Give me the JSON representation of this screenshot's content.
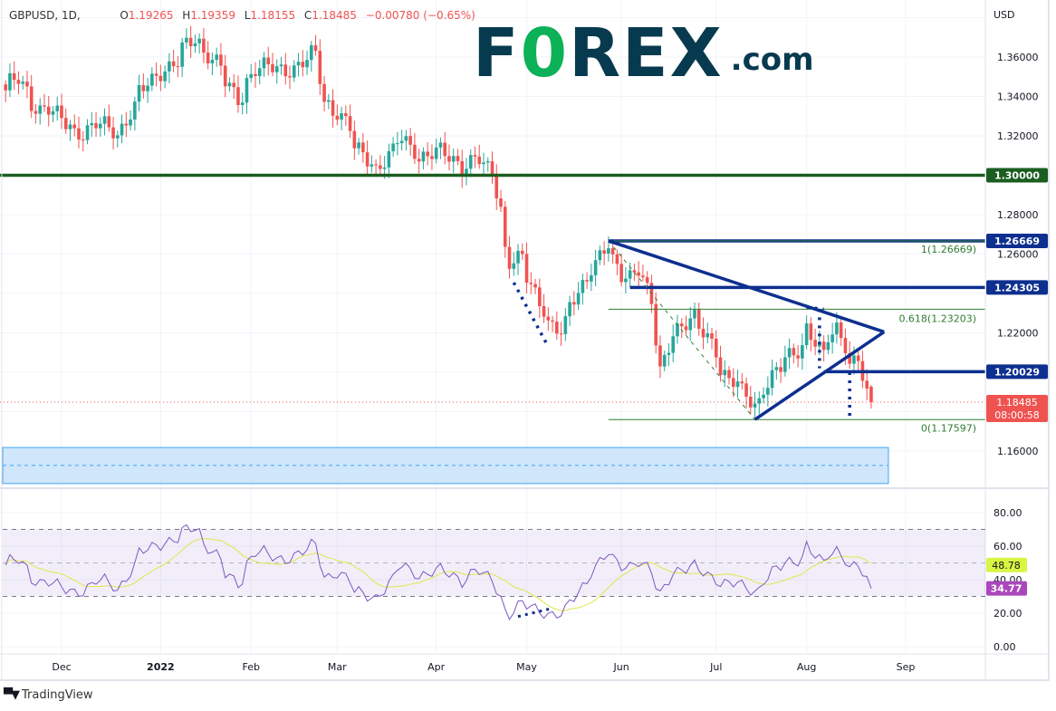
{
  "header": {
    "symbol": "GBPUSD, 1D,",
    "open_label": "O",
    "open": "1.19265",
    "high_label": "H",
    "high": "1.19359",
    "low_label": "L",
    "low": "1.18155",
    "close_label": "C",
    "close": "1.18485",
    "change": "−0.00780 (−0.65%)"
  },
  "logo": {
    "text_pre": "F",
    "text_o": "0",
    "text_post": "REX",
    "suffix": ".com"
  },
  "footer": {
    "brand": "TradingView",
    "brand_icon": "tradingview-logo-icon"
  },
  "colors": {
    "up": "#26a69a",
    "down": "#ef5350",
    "drawing_blue": "#0d2f8f",
    "level_green": "#1b5e20",
    "fib_green": "#2e7d32",
    "rsi": "#7e57c2",
    "rsi_ma": "#e0e64a",
    "zone": "#cfe6fb",
    "zone_border": "#42a5f5"
  },
  "chart_data": [
    {
      "type": "candlestick",
      "title": "GBPUSD, 1D",
      "currency_label": "USD",
      "y_ticks": [
        "1.36000",
        "1.34000",
        "1.32000",
        "1.28000",
        "1.26000",
        "1.22000",
        "1.16000"
      ],
      "ylim": [
        1.1407,
        1.3889
      ],
      "x_ticks": [
        "Dec",
        "2022",
        "Feb",
        "Mar",
        "Apr",
        "May",
        "Jun",
        "Jul",
        "Aug",
        "Sep"
      ],
      "x_tick_dates": [
        "2021-12-01",
        "2022-01-01",
        "2022-02-01",
        "2022-03-01",
        "2022-04-01",
        "2022-05-01",
        "2022-06-01",
        "2022-07-01",
        "2022-08-01",
        "2022-09-01"
      ],
      "grid": true,
      "approx_closes": [
        [
          "2021-11-12",
          1.341
        ],
        [
          "2021-11-17",
          1.349
        ],
        [
          "2021-11-24",
          1.333
        ],
        [
          "2021-11-30",
          1.33
        ],
        [
          "2021-12-08",
          1.321
        ],
        [
          "2021-12-15",
          1.326
        ],
        [
          "2021-12-20",
          1.322
        ],
        [
          "2021-12-27",
          1.341
        ],
        [
          "2021-12-31",
          1.352
        ],
        [
          "2022-01-07",
          1.356
        ],
        [
          "2022-01-13",
          1.37
        ],
        [
          "2022-01-18",
          1.362
        ],
        [
          "2022-01-24",
          1.346
        ],
        [
          "2022-01-27",
          1.339
        ],
        [
          "2022-02-02",
          1.354
        ],
        [
          "2022-02-09",
          1.354
        ],
        [
          "2022-02-15",
          1.355
        ],
        [
          "2022-02-22",
          1.361
        ],
        [
          "2022-02-24",
          1.338
        ],
        [
          "2022-03-01",
          1.333
        ],
        [
          "2022-03-07",
          1.313
        ],
        [
          "2022-03-14",
          1.304
        ],
        [
          "2022-03-22",
          1.318
        ],
        [
          "2022-03-28",
          1.31
        ],
        [
          "2022-04-04",
          1.311
        ],
        [
          "2022-04-11",
          1.305
        ],
        [
          "2022-04-14",
          1.308
        ],
        [
          "2022-04-20",
          1.301
        ],
        [
          "2022-04-22",
          1.284
        ],
        [
          "2022-04-26",
          1.257
        ],
        [
          "2022-04-29",
          1.257
        ],
        [
          "2022-05-05",
          1.236
        ],
        [
          "2022-05-12",
          1.22
        ],
        [
          "2022-05-16",
          1.232
        ],
        [
          "2022-05-20",
          1.249
        ],
        [
          "2022-05-27",
          1.263
        ],
        [
          "2022-06-01",
          1.249
        ],
        [
          "2022-06-07",
          1.254
        ],
        [
          "2022-06-13",
          1.214
        ],
        [
          "2022-06-14",
          1.199
        ],
        [
          "2022-06-17",
          1.222
        ],
        [
          "2022-06-24",
          1.226
        ],
        [
          "2022-06-30",
          1.216
        ],
        [
          "2022-07-06",
          1.196
        ],
        [
          "2022-07-14",
          1.184
        ],
        [
          "2022-07-20",
          1.198
        ],
        [
          "2022-07-27",
          1.209
        ],
        [
          "2022-08-01",
          1.224
        ],
        [
          "2022-08-05",
          1.207
        ],
        [
          "2022-08-10",
          1.222
        ],
        [
          "2022-08-15",
          1.206
        ],
        [
          "2022-08-17",
          1.207
        ],
        [
          "2022-08-19",
          1.187
        ],
        [
          "2022-08-22",
          1.18485
        ]
      ],
      "last_bar": {
        "open": 1.19265,
        "high": 1.19359,
        "low": 1.18155,
        "close": 1.18485
      },
      "price_tags": [
        {
          "label": "1.30000",
          "value": 1.3,
          "color": "#1b5e20"
        },
        {
          "label": "1.26669",
          "value": 1.26669,
          "color": "#0d2f8f"
        },
        {
          "label": "1.24305",
          "value": 1.24305,
          "color": "#0d2f8f"
        },
        {
          "label": "1.20029",
          "value": 1.20029,
          "color": "#0d2f8f"
        }
      ],
      "last_price_tag": {
        "label": "1.18485",
        "countdown": "08:00:58",
        "value": 1.18485,
        "color": "#ef5350"
      },
      "horizontal_levels": [
        {
          "value": 1.3,
          "from": "2021-11-12",
          "style": "thick-green"
        },
        {
          "value": 1.26669,
          "from": "2022-05-27",
          "style": "thick-blue"
        },
        {
          "value": 1.24305,
          "from": "2022-06-03",
          "style": "thick-blue"
        },
        {
          "value": 1.20029,
          "from": "2022-08-05",
          "style": "thick-blue"
        }
      ],
      "fibonacci": {
        "from": "2022-05-27",
        "levels": [
          {
            "label": "1(1.26669)",
            "value": 1.26669
          },
          {
            "label": "0.618(1.23203)",
            "value": 1.23203
          },
          {
            "label": "0(1.17597)",
            "value": 1.17597
          }
        ]
      },
      "triangle": {
        "top": [
          "2022-05-27",
          1.2667
        ],
        "bottom": [
          "2022-07-14",
          1.176
        ],
        "apex": [
          "2022-08-25",
          1.2205
        ]
      },
      "dotted_lines": [
        [
          [
            "2022-04-27",
            1.2455
          ],
          [
            "2022-05-09",
            1.213
          ]
        ],
        [
          [
            "2022-08-01",
            1.233
          ],
          [
            "2022-08-05",
            1.232
          ]
        ],
        [
          [
            "2022-08-04",
            1.232
          ],
          [
            "2022-08-04",
            1.202
          ]
        ],
        [
          [
            "2022-08-15",
            1.2
          ],
          [
            "2022-08-15",
            1.176
          ]
        ]
      ],
      "dashed_diagonal": [
        [
          "2022-05-27",
          1.2667
        ],
        [
          "2022-07-14",
          1.176
        ]
      ],
      "zone": {
        "top": 1.1618,
        "bottom": 1.1435,
        "mid": 1.1527,
        "from": "2021-11-12",
        "to": "2022-08-26"
      }
    },
    {
      "type": "line",
      "indicator": "RSI",
      "ylim": [
        0,
        100
      ],
      "y_ticks": [
        "80.00",
        "60.00",
        "40.00",
        "20.00",
        "0.00"
      ],
      "band": [
        30,
        70
      ],
      "midline": 50,
      "rsi_tag": "34.77",
      "ma_tag": "48.78",
      "approx_rsi": [
        [
          "2021-11-12",
          47
        ],
        [
          "2021-11-17",
          52
        ],
        [
          "2021-11-24",
          38
        ],
        [
          "2021-11-30",
          36
        ],
        [
          "2021-12-08",
          33
        ],
        [
          "2021-12-15",
          40
        ],
        [
          "2021-12-20",
          35
        ],
        [
          "2021-12-27",
          55
        ],
        [
          "2021-12-31",
          62
        ],
        [
          "2022-01-07",
          63
        ],
        [
          "2022-01-13",
          72
        ],
        [
          "2022-01-18",
          60
        ],
        [
          "2022-01-24",
          42
        ],
        [
          "2022-01-27",
          38
        ],
        [
          "2022-02-02",
          57
        ],
        [
          "2022-02-09",
          52
        ],
        [
          "2022-02-15",
          55
        ],
        [
          "2022-02-22",
          60
        ],
        [
          "2022-02-24",
          42
        ],
        [
          "2022-03-01",
          45
        ],
        [
          "2022-03-07",
          32
        ],
        [
          "2022-03-14",
          30
        ],
        [
          "2022-03-22",
          48
        ],
        [
          "2022-03-28",
          43
        ],
        [
          "2022-04-04",
          45
        ],
        [
          "2022-04-11",
          40
        ],
        [
          "2022-04-14",
          45
        ],
        [
          "2022-04-20",
          40
        ],
        [
          "2022-04-22",
          30
        ],
        [
          "2022-04-26",
          20
        ],
        [
          "2022-04-29",
          25
        ],
        [
          "2022-05-05",
          22
        ],
        [
          "2022-05-12",
          19
        ],
        [
          "2022-05-16",
          25
        ],
        [
          "2022-05-20",
          40
        ],
        [
          "2022-05-27",
          55
        ],
        [
          "2022-06-01",
          48
        ],
        [
          "2022-06-07",
          52
        ],
        [
          "2022-06-13",
          35
        ],
        [
          "2022-06-14",
          30
        ],
        [
          "2022-06-17",
          46
        ],
        [
          "2022-06-24",
          47
        ],
        [
          "2022-06-30",
          42
        ],
        [
          "2022-07-06",
          38
        ],
        [
          "2022-07-14",
          33
        ],
        [
          "2022-07-20",
          45
        ],
        [
          "2022-07-27",
          50
        ],
        [
          "2022-08-01",
          62
        ],
        [
          "2022-08-05",
          48
        ],
        [
          "2022-08-10",
          57
        ],
        [
          "2022-08-15",
          49
        ],
        [
          "2022-08-17",
          49
        ],
        [
          "2022-08-19",
          38
        ],
        [
          "2022-08-22",
          34.77
        ]
      ],
      "dotted_line": [
        [
          "2022-04-28",
          18
        ],
        [
          "2022-05-10",
          23
        ]
      ]
    }
  ]
}
